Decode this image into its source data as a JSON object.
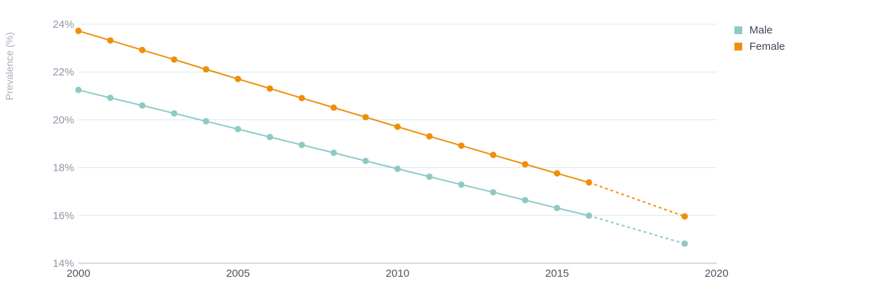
{
  "chart_data": {
    "type": "line",
    "ylabel": "Prevalence (%)",
    "xlim": [
      2000,
      2020
    ],
    "ylim": [
      14,
      24
    ],
    "x_ticks": [
      "2000",
      "2005",
      "2010",
      "2015",
      "2020"
    ],
    "y_ticks": [
      "14%",
      "16%",
      "18%",
      "20%",
      "22%",
      "24%"
    ],
    "grid": true,
    "legend_position": "top-right",
    "projection_start": 2016,
    "series": [
      {
        "name": "Male",
        "color": "#8ec9c6",
        "x": [
          2000,
          2001,
          2002,
          2003,
          2004,
          2005,
          2006,
          2007,
          2008,
          2009,
          2010,
          2011,
          2012,
          2013,
          2014,
          2015,
          2016,
          2019
        ],
        "values": [
          21.25,
          20.92,
          20.6,
          20.27,
          19.94,
          19.61,
          19.28,
          18.95,
          18.62,
          18.28,
          17.95,
          17.62,
          17.29,
          16.97,
          16.64,
          16.31,
          15.99,
          14.82
        ]
      },
      {
        "name": "Female",
        "color": "#ee8f0b",
        "x": [
          2000,
          2001,
          2002,
          2003,
          2004,
          2005,
          2006,
          2007,
          2008,
          2009,
          2010,
          2011,
          2012,
          2013,
          2014,
          2015,
          2016,
          2019
        ],
        "values": [
          23.72,
          23.32,
          22.92,
          22.52,
          22.11,
          21.71,
          21.31,
          20.91,
          20.51,
          20.11,
          19.71,
          19.31,
          18.92,
          18.53,
          18.14,
          17.76,
          17.38,
          15.96
        ]
      }
    ]
  }
}
